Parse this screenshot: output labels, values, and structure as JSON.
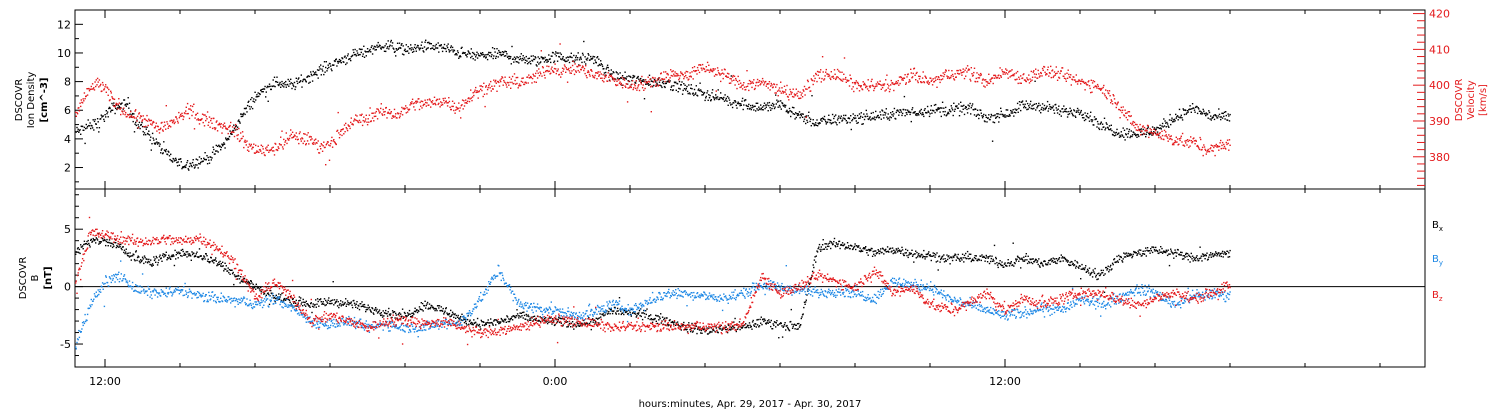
{
  "x_title": "hours:minutes, Apr. 29, 2017 - Apr. 30, 2017",
  "x_tick_labels": [
    "12:00",
    "0:00",
    "12:00"
  ],
  "colors": {
    "black": "#000000",
    "red": "#e41a1c",
    "blue": "#1e88e5"
  },
  "chart_data": [
    {
      "type": "scatter",
      "panel": "top",
      "x_units": "hours since 2017-04-29 00:00",
      "xlim": [
        11.2,
        47.2
      ],
      "left_axis": {
        "label_lines": [
          "DSCOVR",
          "Ion Density",
          "[cm^-3]"
        ],
        "ylim": [
          0.5,
          13
        ],
        "tick_labels": [
          "2",
          "4",
          "6",
          "8",
          "10",
          "12"
        ],
        "ticks": [
          2,
          4,
          6,
          8,
          10,
          12
        ]
      },
      "right_axis": {
        "label_lines": [
          "DSCOVR",
          "Velocity",
          "[km/s]"
        ],
        "ylim": [
          371,
          421
        ],
        "tick_labels": [
          "380",
          "390",
          "400",
          "410",
          "420"
        ],
        "ticks": [
          380,
          390,
          400,
          410,
          420
        ]
      },
      "series": [
        {
          "name": "Ion Density",
          "axis": "left",
          "color": "#000000",
          "x": [
            11.2,
            11.5,
            11.8,
            12.2,
            12.6,
            12.8,
            13.0,
            13.2,
            13.6,
            14.0,
            14.4,
            14.8,
            15.2,
            15.6,
            16.0,
            16.5,
            17.0,
            17.5,
            18.0,
            18.5,
            19.0,
            19.5,
            20.0,
            20.5,
            21.0,
            21.5,
            22.0,
            22.5,
            23.0,
            23.5,
            24.0,
            24.5,
            25.0,
            25.5,
            26.0,
            26.5,
            27.0,
            27.5,
            28.0,
            28.5,
            29.0,
            29.5,
            30.0,
            30.5,
            31.0,
            31.5,
            32.0,
            32.5,
            33.0,
            33.5,
            34.0,
            34.5,
            35.0,
            35.5,
            36.0,
            36.5,
            37.0,
            37.5,
            38.0,
            38.5,
            39.0,
            39.5,
            40.0,
            40.5,
            41.0,
            41.5,
            42.0
          ],
          "y": [
            4.5,
            4.8,
            5.2,
            6.2,
            6.5,
            5.2,
            4.8,
            4.2,
            3.0,
            2.2,
            2.4,
            2.8,
            3.8,
            5.5,
            7.0,
            8.0,
            7.8,
            8.5,
            9.2,
            9.8,
            10.2,
            10.6,
            10.2,
            10.5,
            10.4,
            10.0,
            9.8,
            10.0,
            9.6,
            9.5,
            9.8,
            9.6,
            9.7,
            8.5,
            8.2,
            8.0,
            8.0,
            7.5,
            7.2,
            6.8,
            6.5,
            6.2,
            6.5,
            5.6,
            5.2,
            5.4,
            5.5,
            5.6,
            5.8,
            5.9,
            6.1,
            6.0,
            6.2,
            5.5,
            5.8,
            6.4,
            6.3,
            5.9,
            6.0,
            5.1,
            4.5,
            4.4,
            4.6,
            5.5,
            6.2,
            5.6,
            5.5
          ],
          "noise": 0.35
        },
        {
          "name": "Velocity",
          "axis": "right",
          "color": "#e41a1c",
          "x": [
            11.2,
            11.5,
            11.8,
            12.2,
            12.6,
            13.0,
            13.4,
            13.8,
            14.2,
            14.6,
            15.0,
            15.4,
            15.8,
            16.2,
            16.6,
            17.0,
            17.4,
            17.8,
            18.2,
            18.6,
            19.0,
            19.4,
            19.8,
            20.2,
            20.6,
            21.0,
            21.4,
            21.8,
            22.2,
            22.6,
            23.0,
            23.4,
            23.8,
            24.2,
            24.6,
            25.0,
            25.5,
            26.0,
            26.5,
            27.0,
            27.5,
            28.0,
            28.5,
            29.0,
            29.5,
            30.0,
            30.5,
            31.0,
            31.5,
            32.0,
            32.5,
            33.0,
            33.5,
            34.0,
            34.5,
            35.0,
            35.5,
            36.0,
            36.5,
            37.0,
            37.5,
            38.0,
            38.5,
            39.0,
            39.5,
            40.0,
            40.5,
            41.0,
            41.5,
            42.0
          ],
          "y": [
            392,
            398,
            401,
            396,
            392,
            391,
            388,
            390,
            393,
            391,
            389,
            388,
            383,
            382,
            383,
            386,
            385,
            383,
            386,
            390,
            391,
            393,
            392,
            395,
            395,
            396,
            394,
            398,
            400,
            401,
            401,
            402,
            405,
            404,
            405,
            403,
            402,
            400,
            401,
            403,
            403,
            405,
            403,
            400,
            401,
            399,
            397,
            403,
            403,
            400,
            400,
            400,
            403,
            401,
            403,
            404,
            401,
            404,
            402,
            404,
            403,
            401,
            400,
            395,
            388,
            387,
            385,
            384,
            382,
            384
          ],
          "noise": 1.6
        }
      ]
    },
    {
      "type": "scatter",
      "panel": "bottom",
      "x_units": "hours since 2017-04-29 00:00",
      "xlim": [
        11.2,
        47.2
      ],
      "left_axis": {
        "label_lines": [
          "DSCOVR",
          "B",
          "[nT]"
        ],
        "ylim": [
          -7,
          8.5
        ],
        "tick_labels": [
          "-5",
          "0",
          "5"
        ],
        "ticks": [
          -5,
          0,
          5
        ]
      },
      "zero_line": true,
      "series": [
        {
          "name": "Bx",
          "color": "#000000",
          "x": [
            11.2,
            11.6,
            12.0,
            12.4,
            12.8,
            13.2,
            13.6,
            14.0,
            14.5,
            15.0,
            15.5,
            16.0,
            16.5,
            17.0,
            17.5,
            18.0,
            18.5,
            19.0,
            19.5,
            20.0,
            20.5,
            21.0,
            21.5,
            22.0,
            22.5,
            23.0,
            23.5,
            24.0,
            24.5,
            25.0,
            25.5,
            26.0,
            26.5,
            27.0,
            27.5,
            28.0,
            28.5,
            29.0,
            29.5,
            30.0,
            30.5,
            31.0,
            31.5,
            32.0,
            32.5,
            33.0,
            33.5,
            34.0,
            34.5,
            35.0,
            35.5,
            36.0,
            36.5,
            37.0,
            37.5,
            38.0,
            38.5,
            39.0,
            39.5,
            40.0,
            40.5,
            41.0,
            41.5,
            42.0
          ],
          "y": [
            3.0,
            4.2,
            4.0,
            3.5,
            2.5,
            2.2,
            2.6,
            3.0,
            2.8,
            2.2,
            1.0,
            0.0,
            -0.8,
            -1.2,
            -1.5,
            -1.2,
            -1.5,
            -1.8,
            -2.2,
            -2.5,
            -1.5,
            -2.0,
            -2.8,
            -3.2,
            -3.0,
            -2.5,
            -2.8,
            -3.0,
            -3.2,
            -3.0,
            -2.0,
            -2.2,
            -2.5,
            -3.0,
            -3.5,
            -3.8,
            -3.5,
            -3.5,
            -3.0,
            -3.2,
            -3.5,
            3.5,
            3.8,
            3.5,
            3.0,
            3.3,
            3.0,
            2.8,
            2.5,
            2.6,
            2.5,
            2.0,
            2.5,
            2.0,
            2.5,
            1.8,
            1.0,
            2.5,
            3.0,
            3.2,
            3.0,
            2.5,
            2.8,
            3.0
          ],
          "noise": 0.35
        },
        {
          "name": "By",
          "color": "#1e88e5",
          "x": [
            11.2,
            11.6,
            12.0,
            12.4,
            12.8,
            13.2,
            13.6,
            14.0,
            14.5,
            15.0,
            15.5,
            16.0,
            16.5,
            17.0,
            17.5,
            18.0,
            18.5,
            19.0,
            19.5,
            20.0,
            20.5,
            21.0,
            21.5,
            22.0,
            22.5,
            23.0,
            23.5,
            24.0,
            24.5,
            25.0,
            25.5,
            26.0,
            26.5,
            27.0,
            27.5,
            28.0,
            28.5,
            29.0,
            29.5,
            30.0,
            30.5,
            31.0,
            31.5,
            32.0,
            32.5,
            33.0,
            33.5,
            34.0,
            34.5,
            35.0,
            35.5,
            36.0,
            36.5,
            37.0,
            37.5,
            38.0,
            38.5,
            39.0,
            39.5,
            40.0,
            40.5,
            41.0,
            41.5,
            42.0
          ],
          "y": [
            -5.0,
            -1.5,
            0.5,
            1.0,
            -0.2,
            -0.5,
            -0.5,
            -0.3,
            -0.8,
            -1.0,
            -1.2,
            -1.5,
            -1.0,
            -1.8,
            -3.0,
            -3.2,
            -3.0,
            -3.5,
            -3.2,
            -3.5,
            -3.5,
            -3.2,
            -3.0,
            -1.0,
            1.5,
            -1.5,
            -1.8,
            -2.0,
            -2.5,
            -2.2,
            -1.5,
            -2.0,
            -1.2,
            -0.5,
            -0.5,
            -0.8,
            -1.0,
            -0.5,
            0.2,
            0.0,
            -0.3,
            -0.5,
            -0.3,
            -0.5,
            -1.0,
            0.5,
            0.2,
            0.0,
            -1.0,
            -1.5,
            -2.0,
            -2.5,
            -2.2,
            -1.8,
            -2.0,
            -1.0,
            -1.5,
            -1.0,
            -0.2,
            -0.5,
            -1.5,
            -0.8,
            -0.6,
            -0.7
          ],
          "noise": 0.4
        },
        {
          "name": "Bz",
          "color": "#e41a1c",
          "x": [
            11.2,
            11.6,
            12.0,
            12.4,
            12.8,
            13.2,
            13.6,
            14.0,
            14.5,
            15.0,
            15.5,
            16.0,
            16.5,
            17.0,
            17.5,
            18.0,
            18.5,
            19.0,
            19.5,
            20.0,
            20.5,
            21.0,
            21.5,
            22.0,
            22.5,
            23.0,
            23.5,
            24.0,
            24.5,
            25.0,
            25.5,
            26.0,
            26.5,
            27.0,
            27.5,
            28.0,
            28.5,
            29.0,
            29.5,
            30.0,
            30.5,
            31.0,
            31.5,
            32.0,
            32.5,
            33.0,
            33.5,
            34.0,
            34.5,
            35.0,
            35.5,
            36.0,
            36.5,
            37.0,
            37.5,
            38.0,
            38.5,
            39.0,
            39.5,
            40.0,
            40.5,
            41.0,
            41.5,
            42.0
          ],
          "y": [
            0.5,
            4.8,
            4.5,
            4.2,
            4.0,
            4.0,
            4.2,
            4.0,
            4.3,
            3.5,
            2.0,
            -1.0,
            0.5,
            -1.0,
            -3.0,
            -2.5,
            -3.0,
            -3.5,
            -3.0,
            -2.8,
            -3.2,
            -3.0,
            -3.5,
            -4.0,
            -3.8,
            -3.5,
            -3.0,
            -2.8,
            -3.0,
            -3.2,
            -3.5,
            -3.4,
            -3.5,
            -3.4,
            -3.5,
            -3.4,
            -3.5,
            -3.2,
            1.0,
            -0.5,
            0.0,
            1.0,
            0.5,
            0.0,
            1.5,
            -0.5,
            0.0,
            -1.5,
            -2.0,
            -1.5,
            -0.5,
            -2.0,
            -1.0,
            -1.5,
            -1.0,
            -0.5,
            -0.5,
            -1.0,
            -1.5,
            -1.0,
            -0.5,
            -1.0,
            -0.5,
            0.2
          ],
          "noise": 0.4
        }
      ],
      "legend": [
        {
          "label": "B",
          "sub": "x",
          "color": "#000000"
        },
        {
          "label": "B",
          "sub": "y",
          "color": "#1e88e5"
        },
        {
          "label": "B",
          "sub": "z",
          "color": "#e41a1c"
        }
      ]
    }
  ]
}
